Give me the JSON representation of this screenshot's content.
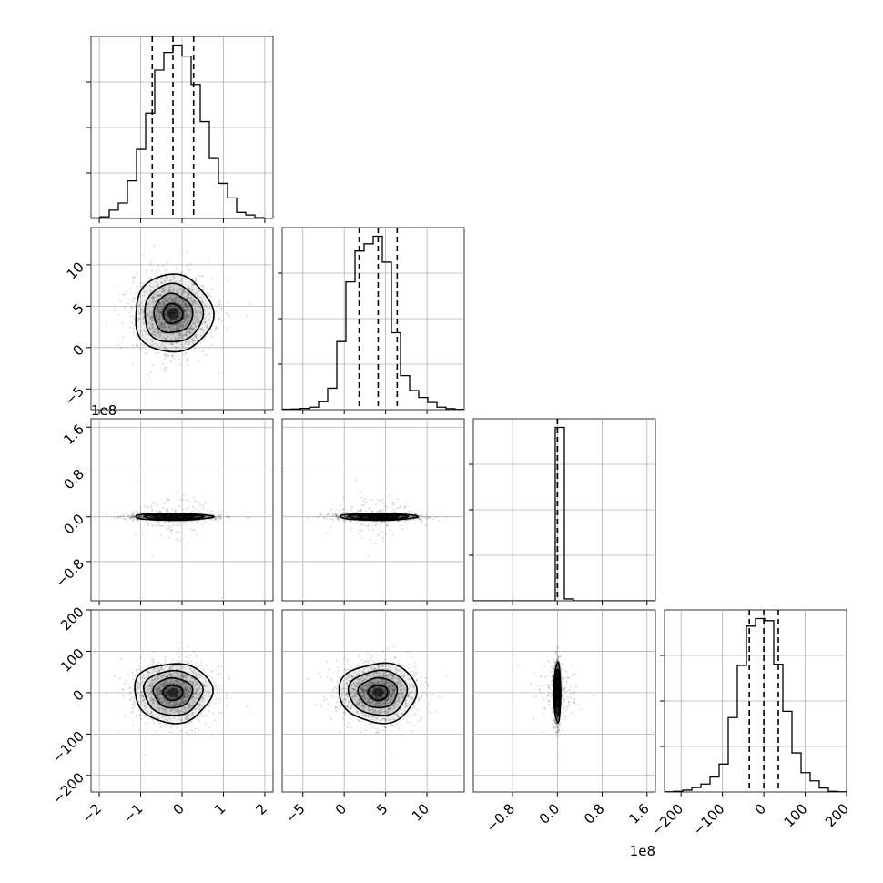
{
  "chart_data": {
    "type": "corner",
    "grid": true,
    "parameters": [
      {
        "range": [
          -2.2,
          2.2
        ],
        "ticks": [
          -2,
          -1,
          0,
          1,
          2
        ],
        "tick_labels": [
          "−2",
          "−1",
          "0",
          "1",
          "2"
        ],
        "offset_label": "",
        "mean": -0.22,
        "sd": 0.47,
        "quantiles": [
          -0.72,
          -0.22,
          0.28
        ],
        "hist": {
          "edges": [
            -2.2,
            -1.98,
            -1.76,
            -1.54,
            -1.32,
            -1.1,
            -0.88,
            -0.66,
            -0.44,
            -0.22,
            0.0,
            0.22,
            0.44,
            0.66,
            0.88,
            1.1,
            1.32,
            1.54,
            1.76,
            1.98,
            2.2
          ],
          "counts": [
            0.3,
            0.9,
            4.5,
            8.4,
            20.5,
            37.6,
            57.3,
            80.7,
            90.3,
            94.3,
            88.3,
            72.9,
            52.7,
            32.6,
            19.1,
            11.2,
            3.3,
            1.9,
            0.5,
            0.2
          ]
        }
      },
      {
        "range": [
          -7.5,
          14.5
        ],
        "ticks": [
          -5,
          0,
          5,
          10
        ],
        "tick_labels": [
          "−5",
          "0",
          "5",
          "10"
        ],
        "offset_label": "",
        "mean": 4.1,
        "sd": 2.35,
        "quantiles": [
          1.8,
          4.1,
          6.4
        ],
        "hist": {
          "edges": [
            -7.5,
            -6.4,
            -5.3,
            -4.2,
            -3.1,
            -2.0,
            -0.9,
            0.2,
            1.3,
            2.4,
            3.5,
            4.6,
            5.7,
            6.8,
            7.9,
            9.0,
            10.1,
            11.2,
            12.3,
            13.4,
            14.5
          ],
          "counts": [
            0.2,
            0.3,
            0.6,
            1.2,
            3.8,
            10.2,
            32.4,
            60.8,
            75.5,
            78.9,
            82.5,
            70.2,
            36.6,
            16.2,
            9.1,
            5.8,
            3.4,
            1.2,
            0.5,
            0.1
          ]
        }
      },
      {
        "range": [
          -150000000.0,
          175000000.0
        ],
        "ticks": [
          -80000000.0,
          0.0,
          80000000.0,
          160000000.0
        ],
        "tick_labels": [
          "−0.8",
          "0.0",
          "0.8",
          "1.6"
        ],
        "offset_label": "1e8",
        "mean": 0,
        "sd": 3000000.0,
        "quantiles": [
          0,
          0,
          0
        ],
        "hist": {
          "edges": [
            -150000000.0,
            -133750000.0,
            -117500000.0,
            -101250000.0,
            -85000000.0,
            -68750000.0,
            -52500000.0,
            -36250000.0,
            -20000000.0,
            -3750000.0,
            12500000.0,
            28750000.0,
            45000000.0,
            61250000.0,
            77500000.0,
            93750000.0,
            110000000.0,
            126250000.0,
            142500000.0,
            158750000.0,
            175000000.0
          ],
          "counts": [
            0,
            0,
            0,
            0,
            0,
            0,
            0,
            0,
            0,
            183,
            2,
            0,
            0,
            0,
            0,
            0,
            0,
            0,
            0,
            0
          ]
        }
      },
      {
        "range": [
          -240,
          200
        ],
        "ticks": [
          -200,
          -100,
          0,
          100,
          200
        ],
        "tick_labels": [
          "−200",
          "−100",
          "0",
          "100",
          "200"
        ],
        "offset_label": "",
        "mean": 0,
        "sd": 36,
        "quantiles": [
          -35,
          0,
          35
        ],
        "hist": {
          "edges": [
            -240,
            -218,
            -196,
            -174,
            -152,
            -130,
            -108,
            -86,
            -64,
            -42,
            -20,
            2,
            24,
            46,
            68,
            90,
            112,
            134,
            156,
            178,
            200
          ],
          "counts": [
            0.1,
            0.3,
            0.9,
            2.1,
            3.8,
            7.1,
            13.3,
            35.4,
            60.2,
            78.9,
            82.5,
            81.5,
            60.8,
            38.4,
            18.6,
            9.2,
            5.3,
            1.9,
            0.3,
            0.1
          ]
        }
      }
    ]
  }
}
